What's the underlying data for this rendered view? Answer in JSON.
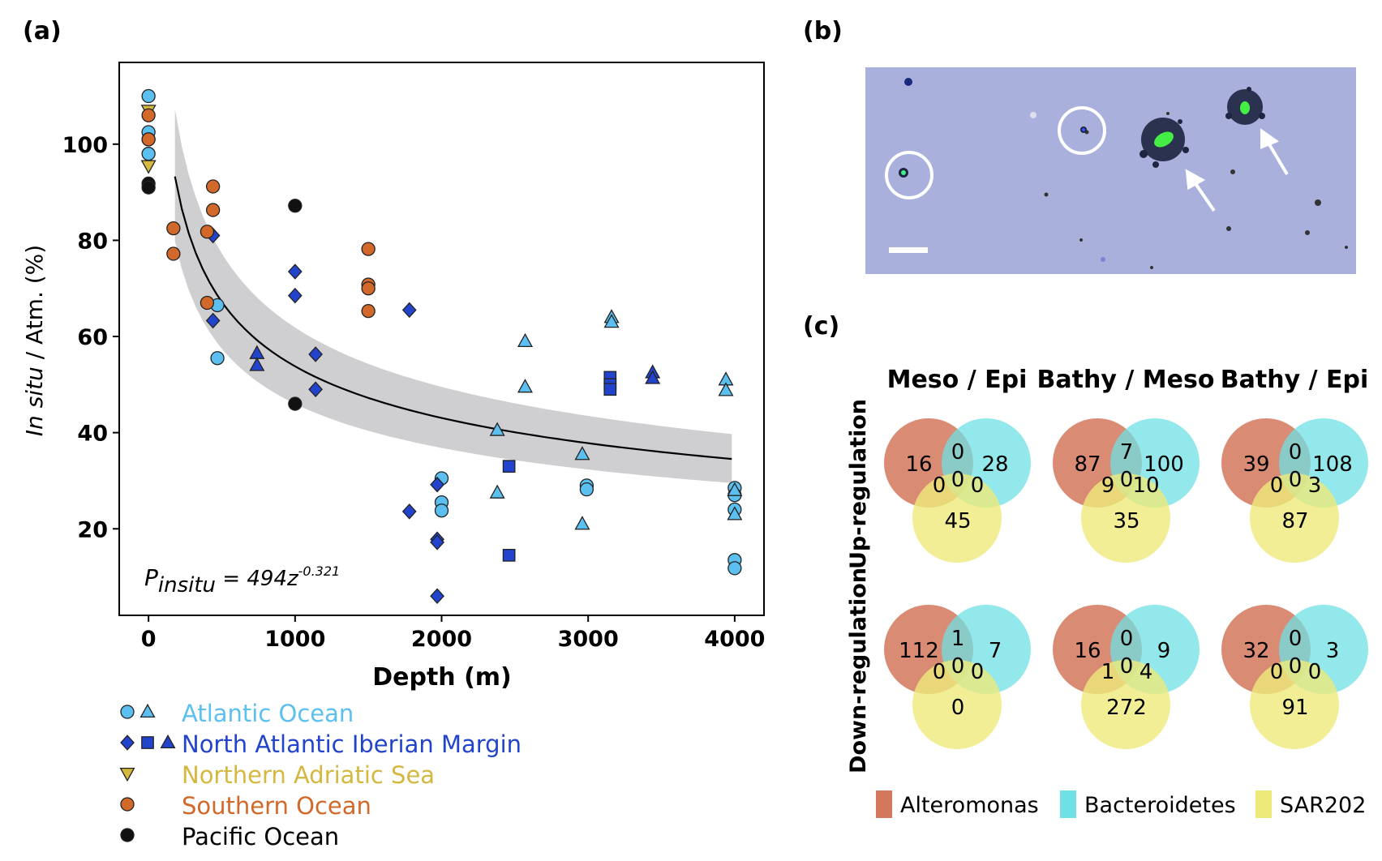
{
  "panels": {
    "a": {
      "label": "(a)"
    },
    "b": {
      "label": "(b)"
    },
    "c": {
      "label": "(c)"
    }
  },
  "chart_data": [
    {
      "type": "scatter",
      "panel": "(a)",
      "xlabel": "Depth (m)",
      "ylabel": "In situ / Atm. (%)",
      "ylabel_italic": "In situ",
      "ylabel_rest": " / Atm. (%)",
      "xlim": [
        -200,
        4200
      ],
      "ylim": [
        2,
        117
      ],
      "xticks": [
        0,
        1000,
        2000,
        3000,
        4000
      ],
      "yticks": [
        20,
        40,
        60,
        80,
        100
      ],
      "grid": false,
      "legend_position": "below-left",
      "annotation": {
        "lhs": "P",
        "sub": "insitu",
        "eq": " = 494z",
        "exp": "-0.321"
      },
      "fit": {
        "a": 494,
        "b": -0.321,
        "x_range": [
          180,
          3980
        ],
        "band_upper_factor": 1.15,
        "band_lower_factor": 0.855
      },
      "series": [
        {
          "name": "Atlantic Ocean",
          "color": "#5bc0f0",
          "markers": [
            "circle",
            "triangle"
          ],
          "points": [
            {
              "m": "circle",
              "x": 0,
              "y": 110
            },
            {
              "m": "circle",
              "x": 0,
              "y": 102.5
            },
            {
              "m": "circle",
              "x": 0,
              "y": 101
            },
            {
              "m": "circle",
              "x": 0,
              "y": 98
            },
            {
              "m": "circle",
              "x": 470,
              "y": 66.5
            },
            {
              "m": "circle",
              "x": 470,
              "y": 55.5
            },
            {
              "m": "circle",
              "x": 2000,
              "y": 30.5
            },
            {
              "m": "circle",
              "x": 2000,
              "y": 25.5
            },
            {
              "m": "circle",
              "x": 2000,
              "y": 23.8
            },
            {
              "m": "circle",
              "x": 2990,
              "y": 29
            },
            {
              "m": "circle",
              "x": 2990,
              "y": 28.2
            },
            {
              "m": "circle",
              "x": 4000,
              "y": 28.5
            },
            {
              "m": "circle",
              "x": 4000,
              "y": 27
            },
            {
              "m": "circle",
              "x": 4000,
              "y": 24
            },
            {
              "m": "circle",
              "x": 4000,
              "y": 13.5
            },
            {
              "m": "circle",
              "x": 4000,
              "y": 11.8
            },
            {
              "m": "triangle",
              "x": 2380,
              "y": 40.5
            },
            {
              "m": "triangle",
              "x": 2380,
              "y": 27.5
            },
            {
              "m": "triangle",
              "x": 2570,
              "y": 59
            },
            {
              "m": "triangle",
              "x": 2570,
              "y": 49.5
            },
            {
              "m": "triangle",
              "x": 2960,
              "y": 35.5
            },
            {
              "m": "triangle",
              "x": 2960,
              "y": 21
            },
            {
              "m": "triangle",
              "x": 3160,
              "y": 64
            },
            {
              "m": "triangle",
              "x": 3160,
              "y": 63
            },
            {
              "m": "triangle",
              "x": 3940,
              "y": 51
            },
            {
              "m": "triangle",
              "x": 3940,
              "y": 48.8
            },
            {
              "m": "triangle",
              "x": 4000,
              "y": 28
            },
            {
              "m": "triangle",
              "x": 4000,
              "y": 23
            }
          ]
        },
        {
          "name": "North Atlantic Iberian Margin",
          "color": "#2244cc",
          "markers": [
            "diamond",
            "square",
            "triangle"
          ],
          "points": [
            {
              "m": "diamond",
              "x": 440,
              "y": 81
            },
            {
              "m": "diamond",
              "x": 440,
              "y": 63.3
            },
            {
              "m": "diamond",
              "x": 1000,
              "y": 73.5
            },
            {
              "m": "diamond",
              "x": 1000,
              "y": 68.5
            },
            {
              "m": "diamond",
              "x": 1140,
              "y": 56.3
            },
            {
              "m": "diamond",
              "x": 1140,
              "y": 49
            },
            {
              "m": "diamond",
              "x": 1780,
              "y": 65.5
            },
            {
              "m": "diamond",
              "x": 1780,
              "y": 23.6
            },
            {
              "m": "diamond",
              "x": 1970,
              "y": 29.2
            },
            {
              "m": "diamond",
              "x": 1970,
              "y": 17.8
            },
            {
              "m": "diamond",
              "x": 1970,
              "y": 17.2
            },
            {
              "m": "diamond",
              "x": 1970,
              "y": 6
            },
            {
              "m": "square",
              "x": 2460,
              "y": 33
            },
            {
              "m": "square",
              "x": 2460,
              "y": 14.5
            },
            {
              "m": "square",
              "x": 3150,
              "y": 51.5
            },
            {
              "m": "square",
              "x": 3150,
              "y": 50
            },
            {
              "m": "square",
              "x": 3150,
              "y": 49
            },
            {
              "m": "triangle",
              "x": 740,
              "y": 56.5
            },
            {
              "m": "triangle",
              "x": 740,
              "y": 54
            },
            {
              "m": "triangle",
              "x": 3440,
              "y": 52.5
            },
            {
              "m": "triangle",
              "x": 3440,
              "y": 51.3
            }
          ]
        },
        {
          "name": "Northern Adriatic Sea",
          "color": "#d4b840",
          "markers": [
            "triangle-down"
          ],
          "points": [
            {
              "m": "triangle-down",
              "x": 0,
              "y": 107
            },
            {
              "m": "triangle-down",
              "x": 0,
              "y": 95.5
            }
          ]
        },
        {
          "name": "Southern Ocean",
          "color": "#d2692a",
          "markers": [
            "circle"
          ],
          "points": [
            {
              "m": "circle",
              "x": 0,
              "y": 106
            },
            {
              "m": "circle",
              "x": 0,
              "y": 101
            },
            {
              "m": "circle",
              "x": 170,
              "y": 82.5
            },
            {
              "m": "circle",
              "x": 170,
              "y": 77.2
            },
            {
              "m": "circle",
              "x": 400,
              "y": 81.8
            },
            {
              "m": "circle",
              "x": 400,
              "y": 67
            },
            {
              "m": "circle",
              "x": 440,
              "y": 91.2
            },
            {
              "m": "circle",
              "x": 440,
              "y": 86.3
            },
            {
              "m": "circle",
              "x": 1500,
              "y": 78.2
            },
            {
              "m": "circle",
              "x": 1500,
              "y": 70.8
            },
            {
              "m": "circle",
              "x": 1500,
              "y": 70
            },
            {
              "m": "circle",
              "x": 1500,
              "y": 65.3
            }
          ]
        },
        {
          "name": "Pacific Ocean",
          "color": "#111111",
          "markers": [
            "circle"
          ],
          "points": [
            {
              "m": "circle",
              "x": 0,
              "y": 91.8
            },
            {
              "m": "circle",
              "x": 0,
              "y": 91
            },
            {
              "m": "circle",
              "x": 1000,
              "y": 87.2
            },
            {
              "m": "circle",
              "x": 1000,
              "y": 46
            }
          ]
        }
      ]
    },
    {
      "type": "venn",
      "panel": "(c)",
      "columns": [
        "Meso / Epi",
        "Bathy / Meso",
        "Bathy / Epi"
      ],
      "rows": [
        "Up-regulation",
        "Down-regulation"
      ],
      "legend": [
        {
          "name": "Alteromonas",
          "color": "#d4775c"
        },
        {
          "name": "Bacteroidetes",
          "color": "#6fe0e4"
        },
        {
          "name": "SAR202",
          "color": "#eeea7a"
        }
      ],
      "cells": [
        [
          {
            "a": "16",
            "ab": "0",
            "b": "28",
            "abc": "0",
            "ac": "0",
            "bc": "0",
            "c": "45"
          },
          {
            "a": "87",
            "ab": "7",
            "b": "100",
            "abc": "0",
            "ac": "9",
            "bc": "10",
            "c": "35"
          },
          {
            "a": "39",
            "ab": "0",
            "b": "108",
            "abc": "0",
            "ac": "0",
            "bc": "3",
            "c": "87"
          }
        ],
        [
          {
            "a": "112",
            "ab": "1",
            "b": "7",
            "abc": "0",
            "ac": "0",
            "bc": "0",
            "c": "0"
          },
          {
            "a": "16",
            "ab": "0",
            "b": "9",
            "abc": "0",
            "ac": "1",
            "bc": "4",
            "c": "272"
          },
          {
            "a": "32",
            "ab": "0",
            "b": "3",
            "abc": "0",
            "ac": "0",
            "bc": "0",
            "c": "91"
          }
        ]
      ]
    }
  ],
  "micrograph": {
    "background": "#aab0dc",
    "markers": [
      "circle",
      "circle",
      "arrow",
      "arrow"
    ],
    "has_scale_bar": true
  }
}
